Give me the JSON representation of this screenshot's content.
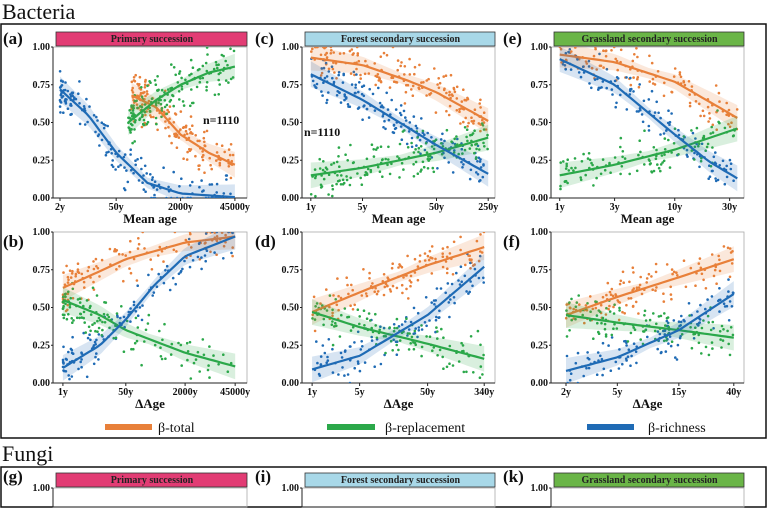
{
  "sections": {
    "bacteria": "Bacteria",
    "fungi": "Fungi"
  },
  "colors": {
    "beta_total": "#E8803A",
    "beta_replacement": "#2BA84A",
    "beta_richness": "#1F6BB5",
    "primary_header": "#E23C74",
    "forest_header": "#A8D8E8",
    "grassland_header": "#6AB547"
  },
  "legend": [
    {
      "label": "β-total",
      "color": "#E8803A"
    },
    {
      "label": "β-replacement",
      "color": "#2BA84A"
    },
    {
      "label": "β-richness",
      "color": "#1F6BB5"
    }
  ],
  "chart_data": [
    {
      "panel": "(a)",
      "type": "scatter",
      "title": "Primary succession",
      "header_color": "#E23C74",
      "xlabel": "Mean age",
      "x_scale": "log",
      "xlim": [
        1.34,
        90000
      ],
      "ylim": [
        0,
        1
      ],
      "xticks": [
        {
          "v": 2,
          "label": "2y"
        },
        {
          "v": 50,
          "label": "50y"
        },
        {
          "v": 2000,
          "label": "2000y"
        },
        {
          "v": 45000,
          "label": "45000y"
        }
      ],
      "yticks": [
        "0.00",
        "0.25",
        "0.50",
        "0.75",
        "1.00"
      ],
      "annotation": "n=1110",
      "series": [
        {
          "name": "β-total",
          "fit": [
            [
              120,
              0.68
            ],
            [
              500,
              0.6
            ],
            [
              2000,
              0.42
            ],
            [
              10000,
              0.3
            ],
            [
              45000,
              0.22
            ]
          ]
        },
        {
          "name": "β-replacement",
          "fit": [
            [
              100,
              0.5
            ],
            [
              500,
              0.65
            ],
            [
              2000,
              0.75
            ],
            [
              10000,
              0.83
            ],
            [
              45000,
              0.87
            ]
          ]
        },
        {
          "name": "β-richness",
          "fit": [
            [
              2,
              0.72
            ],
            [
              10,
              0.55
            ],
            [
              50,
              0.3
            ],
            [
              300,
              0.1
            ],
            [
              2000,
              0.03
            ],
            [
              45000,
              0.005
            ]
          ]
        }
      ]
    },
    {
      "panel": "(c)",
      "type": "scatter",
      "title": "Forest secondary succession",
      "header_color": "#A8D8E8",
      "xlabel": "Mean age",
      "x_scale": "log",
      "xlim": [
        0.76,
        309
      ],
      "ylim": [
        0,
        1
      ],
      "xticks": [
        {
          "v": 1,
          "label": "1y"
        },
        {
          "v": 5,
          "label": "5y"
        },
        {
          "v": 50,
          "label": "50y"
        },
        {
          "v": 250,
          "label": "250y"
        }
      ],
      "yticks": [
        "0.00",
        "0.25",
        "0.50",
        "0.75",
        "1.00"
      ],
      "annotation": "n=1110",
      "series": [
        {
          "name": "β-total",
          "fit": [
            [
              1,
              0.93
            ],
            [
              5,
              0.88
            ],
            [
              20,
              0.78
            ],
            [
              50,
              0.7
            ],
            [
              250,
              0.51
            ]
          ]
        },
        {
          "name": "β-replacement",
          "fit": [
            [
              1,
              0.15
            ],
            [
              5,
              0.2
            ],
            [
              50,
              0.3
            ],
            [
              250,
              0.4
            ]
          ]
        },
        {
          "name": "β-richness",
          "fit": [
            [
              1,
              0.82
            ],
            [
              5,
              0.65
            ],
            [
              20,
              0.47
            ],
            [
              50,
              0.35
            ],
            [
              250,
              0.16
            ]
          ]
        }
      ]
    },
    {
      "panel": "(e)",
      "type": "scatter",
      "title": "Grassland secondary succession",
      "header_color": "#6AB547",
      "xlabel": "Mean age",
      "x_scale": "log",
      "xlim": [
        0.84,
        40
      ],
      "ylim": [
        0,
        1
      ],
      "xticks": [
        {
          "v": 1,
          "label": "1y"
        },
        {
          "v": 3,
          "label": "3y"
        },
        {
          "v": 10,
          "label": "10y"
        },
        {
          "v": 30,
          "label": "30y"
        }
      ],
      "yticks": [
        "0.00",
        "0.25",
        "0.50",
        "0.75",
        "1.00"
      ],
      "annotation": "",
      "series": [
        {
          "name": "β-total",
          "fit": [
            [
              1,
              0.95
            ],
            [
              3,
              0.9
            ],
            [
              10,
              0.77
            ],
            [
              30,
              0.56
            ],
            [
              35,
              0.53
            ]
          ]
        },
        {
          "name": "β-replacement",
          "fit": [
            [
              1,
              0.15
            ],
            [
              3,
              0.22
            ],
            [
              10,
              0.32
            ],
            [
              35,
              0.46
            ]
          ]
        },
        {
          "name": "β-richness",
          "fit": [
            [
              1,
              0.92
            ],
            [
              3,
              0.75
            ],
            [
              10,
              0.42
            ],
            [
              20,
              0.24
            ],
            [
              35,
              0.13
            ]
          ]
        }
      ]
    },
    {
      "panel": "(b)",
      "type": "scatter",
      "title": "",
      "xlabel": "ΔAge",
      "x_scale": "log",
      "xlim": [
        0.54,
        94000
      ],
      "ylim": [
        0,
        1
      ],
      "xticks": [
        {
          "v": 1,
          "label": "1y"
        },
        {
          "v": 50,
          "label": "50y"
        },
        {
          "v": 2000,
          "label": "2000y"
        },
        {
          "v": 45000,
          "label": "45000y"
        }
      ],
      "yticks": [
        "0.00",
        "0.25",
        "0.50",
        "0.75",
        "1.00"
      ],
      "annotation": "",
      "series": [
        {
          "name": "β-total",
          "fit": [
            [
              1,
              0.63
            ],
            [
              10,
              0.74
            ],
            [
              50,
              0.82
            ],
            [
              2000,
              0.93
            ],
            [
              45000,
              0.97
            ]
          ]
        },
        {
          "name": "β-replacement",
          "fit": [
            [
              1,
              0.55
            ],
            [
              10,
              0.45
            ],
            [
              50,
              0.35
            ],
            [
              2000,
              0.2
            ],
            [
              45000,
              0.11
            ]
          ]
        },
        {
          "name": "β-richness",
          "fit": [
            [
              1,
              0.1
            ],
            [
              10,
              0.25
            ],
            [
              50,
              0.42
            ],
            [
              300,
              0.65
            ],
            [
              2000,
              0.84
            ],
            [
              45000,
              0.97
            ]
          ]
        }
      ]
    },
    {
      "panel": "(d)",
      "type": "scatter",
      "title": "",
      "xlabel": "ΔAge",
      "x_scale": "log",
      "xlim": [
        0.71,
        490
      ],
      "ylim": [
        0,
        1
      ],
      "xticks": [
        {
          "v": 1,
          "label": "1y"
        },
        {
          "v": 5,
          "label": "5y"
        },
        {
          "v": 50,
          "label": "50y"
        },
        {
          "v": 340,
          "label": "340y"
        }
      ],
      "yticks": [
        "0.00",
        "0.25",
        "0.50",
        "0.75",
        "1.00"
      ],
      "annotation": "",
      "series": [
        {
          "name": "β-total",
          "fit": [
            [
              1,
              0.47
            ],
            [
              5,
              0.6
            ],
            [
              50,
              0.78
            ],
            [
              340,
              0.9
            ]
          ]
        },
        {
          "name": "β-replacement",
          "fit": [
            [
              1,
              0.47
            ],
            [
              5,
              0.37
            ],
            [
              50,
              0.26
            ],
            [
              340,
              0.16
            ]
          ]
        },
        {
          "name": "β-richness",
          "fit": [
            [
              1,
              0.09
            ],
            [
              5,
              0.18
            ],
            [
              50,
              0.45
            ],
            [
              340,
              0.77
            ]
          ]
        }
      ]
    },
    {
      "panel": "(f)",
      "type": "scatter",
      "title": "",
      "xlabel": "ΔAge",
      "x_scale": "log",
      "xlim": [
        1.53,
        48
      ],
      "ylim": [
        0,
        1
      ],
      "xticks": [
        {
          "v": 2,
          "label": "2y"
        },
        {
          "v": 5,
          "label": "5y"
        },
        {
          "v": 15,
          "label": "15y"
        },
        {
          "v": 40,
          "label": "40y"
        }
      ],
      "yticks": [
        "0.00",
        "0.25",
        "0.50",
        "0.75",
        "1.00"
      ],
      "annotation": "",
      "series": [
        {
          "name": "β-total",
          "fit": [
            [
              2,
              0.45
            ],
            [
              5,
              0.57
            ],
            [
              15,
              0.7
            ],
            [
              40,
              0.82
            ]
          ]
        },
        {
          "name": "β-replacement",
          "fit": [
            [
              2,
              0.45
            ],
            [
              5,
              0.4
            ],
            [
              15,
              0.35
            ],
            [
              40,
              0.3
            ]
          ]
        },
        {
          "name": "β-richness",
          "fit": [
            [
              2,
              0.08
            ],
            [
              5,
              0.17
            ],
            [
              15,
              0.35
            ],
            [
              40,
              0.59
            ]
          ]
        }
      ]
    },
    {
      "panel": "(g)",
      "type": "scatter",
      "title": "Primary succession",
      "header_color": "#E23C74",
      "yticks_visible": [
        "1.00"
      ]
    },
    {
      "panel": "(i)",
      "type": "scatter",
      "title": "Forest secondary succession",
      "header_color": "#A8D8E8",
      "yticks_visible": [
        "1.00"
      ]
    },
    {
      "panel": "(k)",
      "type": "scatter",
      "title": "Grassland secondary succession",
      "header_color": "#6AB547",
      "yticks_visible": [
        "1.00"
      ]
    }
  ]
}
